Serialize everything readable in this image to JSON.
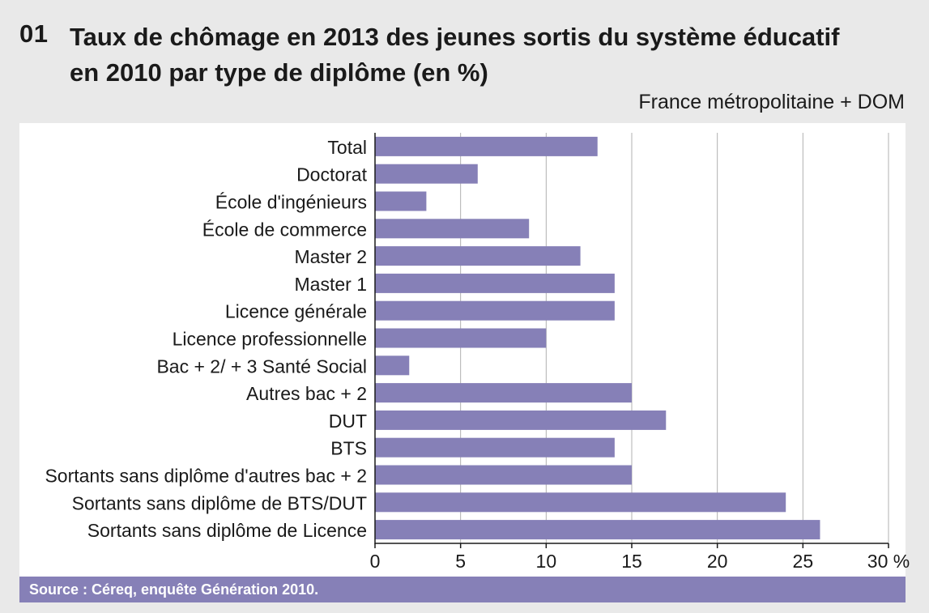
{
  "figure": {
    "number": "01",
    "title_line1": "Taux de chômage en 2013 des jeunes sortis du système éducatif",
    "title_line2": "en 2010 par type de diplôme (en %)",
    "scope": "France métropolitaine + DOM",
    "source": "Source : Céreq, enquête Génération 2010."
  },
  "chart_data": {
    "type": "bar",
    "orientation": "horizontal",
    "categories": [
      "Total",
      "Doctorat",
      "École d'ingénieurs",
      "École de commerce",
      "Master 2",
      "Master 1",
      "Licence générale",
      "Licence professionnelle",
      "Bac + 2/ + 3 Santé Social",
      "Autres bac + 2",
      "DUT",
      "BTS",
      "Sortants sans diplôme d'autres bac + 2",
      "Sortants sans diplôme de BTS/DUT",
      "Sortants sans diplôme de Licence"
    ],
    "values": [
      13,
      6,
      3,
      9,
      12,
      14,
      14,
      10,
      2,
      15,
      17,
      14,
      15,
      24,
      26
    ],
    "xlim": [
      0,
      30
    ],
    "ticks": [
      0,
      5,
      10,
      15,
      20,
      25,
      30
    ],
    "tick_labels": [
      "0",
      "5",
      "10",
      "15",
      "20",
      "25",
      "30 %"
    ],
    "grid": true,
    "bar_color": "#8680b7",
    "grid_color": "#b0b0b0",
    "accent_color": "#8680b7"
  }
}
